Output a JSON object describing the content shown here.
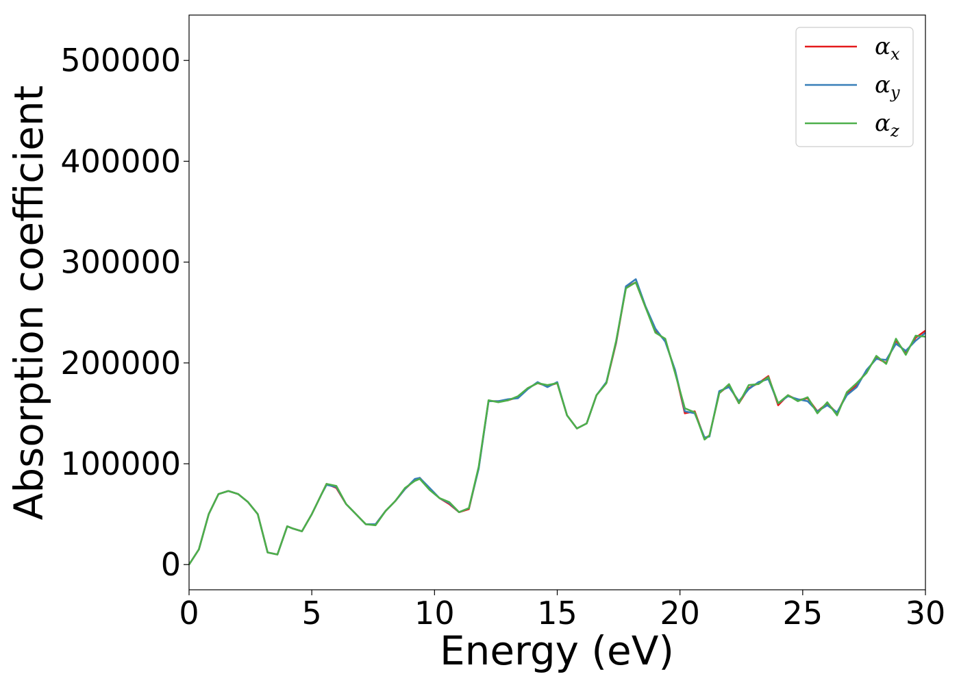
{
  "chart_data": {
    "type": "line",
    "title": "",
    "xlabel": "Energy (eV)",
    "ylabel": "Absorption coefficient",
    "xlim": [
      0,
      30
    ],
    "ylim": [
      -25000,
      545000
    ],
    "xticks": [
      0,
      5,
      10,
      15,
      20,
      25,
      30
    ],
    "yticks": [
      0,
      100000,
      200000,
      300000,
      400000,
      500000
    ],
    "xtick_labels": [
      "0",
      "5",
      "10",
      "15",
      "20",
      "25",
      "30"
    ],
    "ytick_labels": [
      "0",
      "100000",
      "200000",
      "300000",
      "400000",
      "500000"
    ],
    "grid": false,
    "legend_position": "top-right",
    "x": [
      0,
      0.4,
      0.8,
      1.2,
      1.6,
      2.0,
      2.4,
      2.8,
      3.2,
      3.6,
      4.0,
      4.2,
      4.6,
      5.0,
      5.4,
      5.6,
      6.0,
      6.4,
      6.8,
      7.2,
      7.6,
      8.0,
      8.4,
      8.8,
      9.2,
      9.4,
      9.8,
      10.2,
      10.6,
      11.0,
      11.4,
      11.8,
      12.2,
      12.6,
      13.0,
      13.4,
      13.8,
      14.2,
      14.6,
      15.0,
      15.4,
      15.8,
      16.2,
      16.6,
      17.0,
      17.4,
      17.8,
      18.2,
      18.6,
      19.0,
      19.4,
      19.8,
      20.2,
      20.6,
      21.0,
      21.2,
      21.6,
      22.0,
      22.4,
      22.8,
      23.2,
      23.6,
      24.0,
      24.4,
      24.8,
      25.2,
      25.6,
      26.0,
      26.4,
      26.8,
      27.2,
      27.6,
      28.0,
      28.4,
      28.8,
      29.2,
      29.6,
      30.0
    ],
    "series": [
      {
        "name": "α_x",
        "color": "#e41a1c",
        "values": [
          0,
          15000,
          50000,
          70000,
          73000,
          70000,
          62000,
          50000,
          12000,
          10000,
          38000,
          36000,
          33000,
          50000,
          70000,
          80000,
          76000,
          60000,
          50000,
          40000,
          40000,
          53000,
          63000,
          75000,
          84000,
          86000,
          75000,
          66000,
          60000,
          52000,
          55000,
          96000,
          162000,
          162000,
          163000,
          166000,
          175000,
          180000,
          177000,
          180000,
          148000,
          135000,
          140000,
          168000,
          180000,
          220000,
          275000,
          280000,
          255000,
          232000,
          222000,
          192000,
          150000,
          152000,
          125000,
          128000,
          170000,
          178000,
          160000,
          175000,
          180000,
          187000,
          158000,
          168000,
          163000,
          165000,
          152000,
          160000,
          150000,
          170000,
          178000,
          192000,
          205000,
          200000,
          222000,
          210000,
          225000,
          232000
        ]
      },
      {
        "name": "α_y",
        "color": "#377eb8",
        "values": [
          0,
          15000,
          50000,
          70000,
          73000,
          70000,
          62000,
          50000,
          12000,
          10000,
          38000,
          36000,
          33000,
          50000,
          70000,
          79000,
          77000,
          60000,
          50000,
          40000,
          40000,
          53000,
          63000,
          75000,
          85000,
          86000,
          76000,
          66000,
          61000,
          52000,
          56000,
          95000,
          162000,
          162000,
          164000,
          165000,
          174000,
          181000,
          176000,
          181000,
          148000,
          135000,
          140000,
          168000,
          181000,
          221000,
          276000,
          283000,
          256000,
          234000,
          221000,
          193000,
          152000,
          150000,
          126000,
          127000,
          172000,
          176000,
          162000,
          174000,
          181000,
          184000,
          160000,
          167000,
          164000,
          162000,
          152000,
          158000,
          151000,
          168000,
          176000,
          193000,
          204000,
          203000,
          219000,
          212000,
          222000,
          230000
        ]
      },
      {
        "name": "α_z",
        "color": "#4daf4a",
        "values": [
          0,
          15000,
          50000,
          70000,
          73000,
          70000,
          62000,
          50000,
          12000,
          10000,
          38000,
          36000,
          33000,
          50000,
          70000,
          80000,
          78000,
          60000,
          50000,
          40000,
          39000,
          53000,
          63000,
          76000,
          83000,
          85000,
          74000,
          66000,
          62000,
          52000,
          56000,
          97000,
          163000,
          161000,
          163000,
          167000,
          175000,
          180000,
          178000,
          180000,
          148000,
          135000,
          140000,
          168000,
          180000,
          222000,
          274000,
          280000,
          255000,
          230000,
          224000,
          190000,
          155000,
          151000,
          124000,
          128000,
          170000,
          179000,
          160000,
          178000,
          179000,
          186000,
          160000,
          168000,
          162000,
          166000,
          150000,
          161000,
          148000,
          171000,
          180000,
          190000,
          207000,
          199000,
          224000,
          208000,
          227000,
          226000
        ]
      }
    ]
  },
  "legend": {
    "entries": [
      {
        "symbol": "α",
        "sub": "x",
        "color": "#e41a1c"
      },
      {
        "symbol": "α",
        "sub": "y",
        "color": "#377eb8"
      },
      {
        "symbol": "α",
        "sub": "z",
        "color": "#4daf4a"
      }
    ]
  }
}
